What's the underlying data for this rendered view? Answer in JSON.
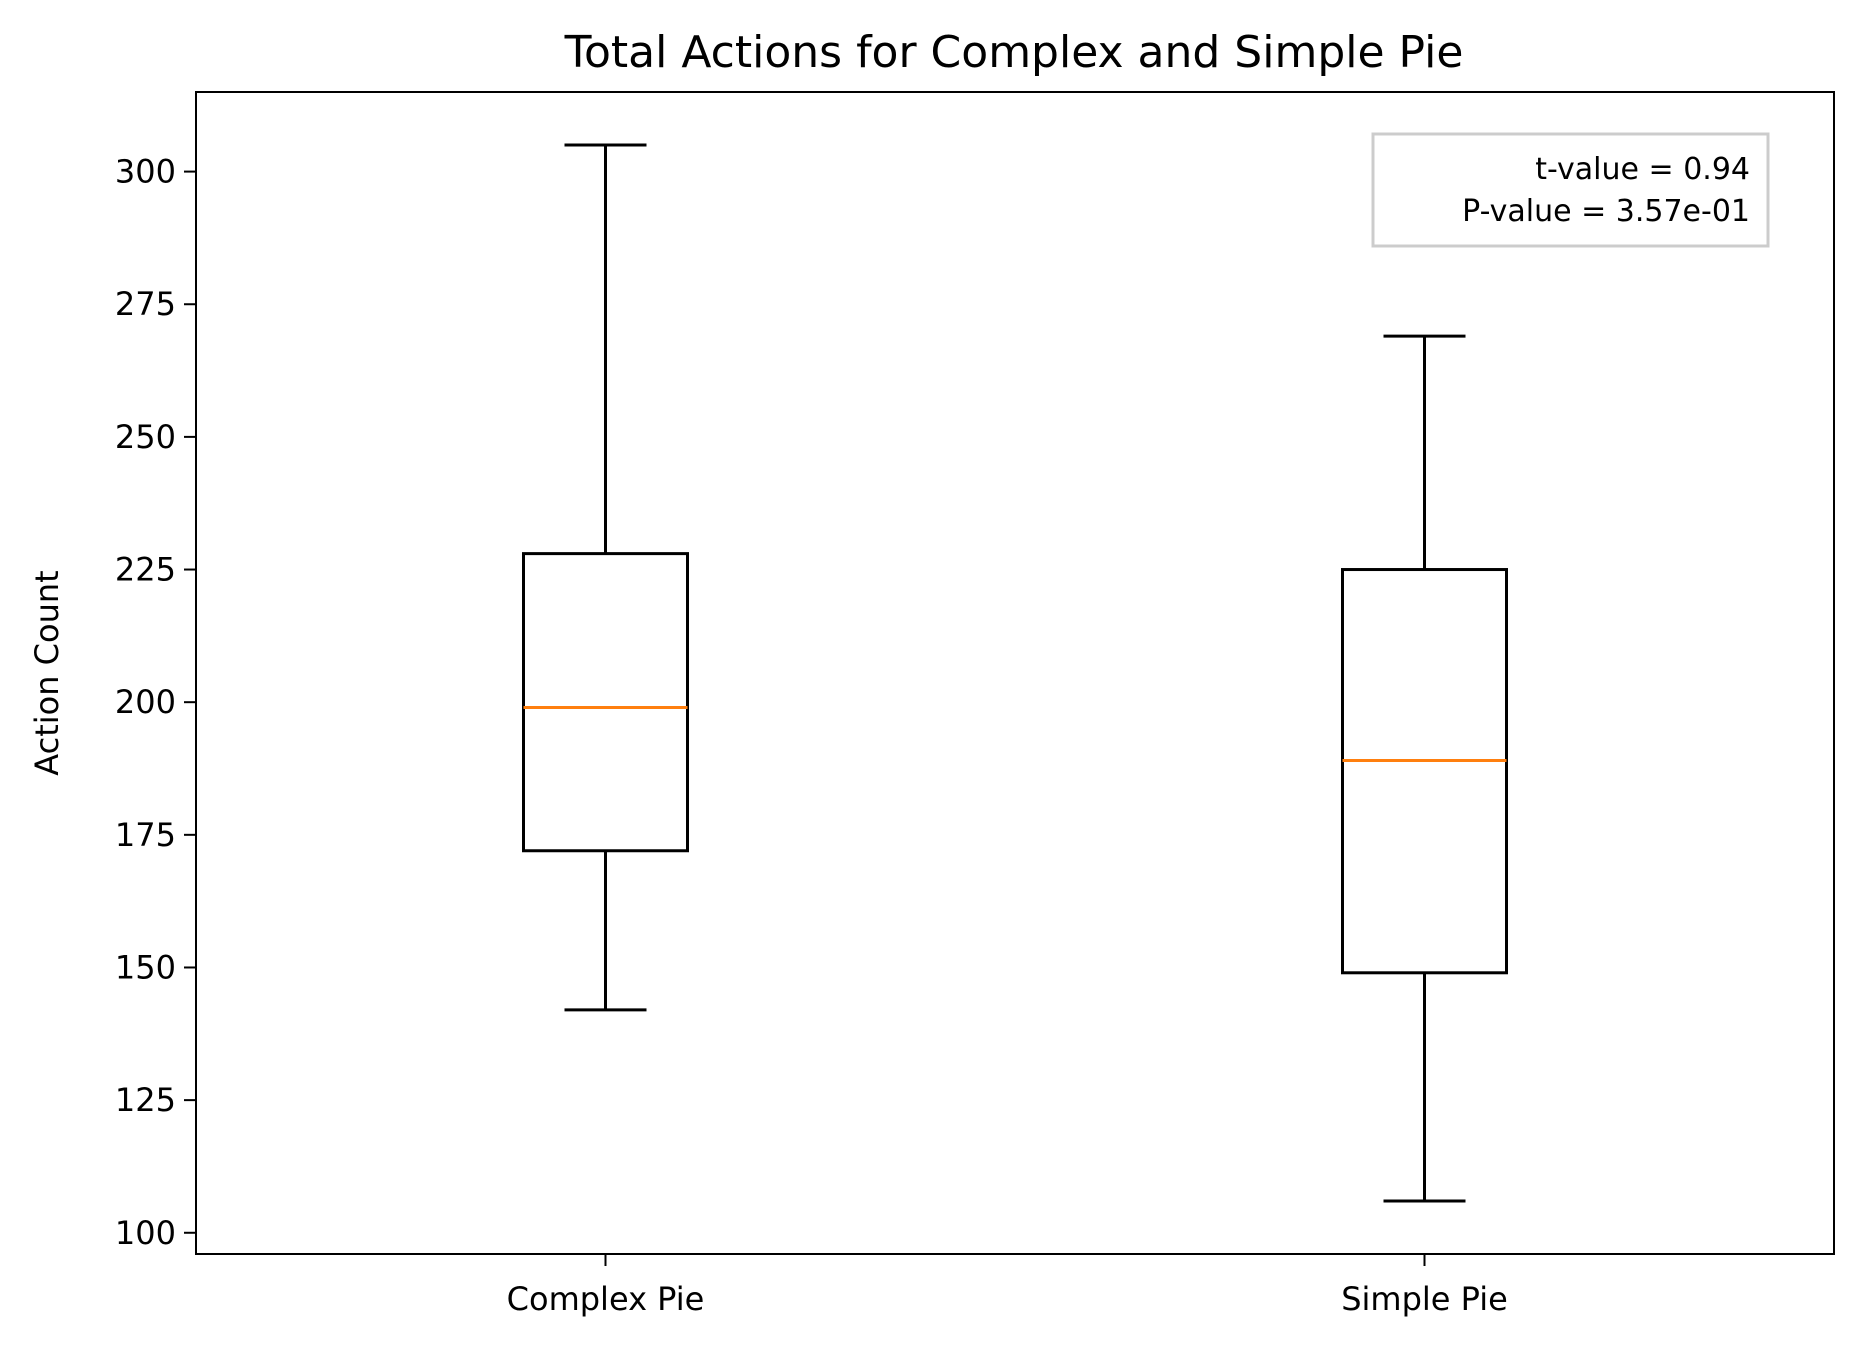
{
  "chart_data": {
    "type": "box",
    "title": "Total Actions for Complex and Simple Pie",
    "xlabel": "",
    "ylabel": "Action Count",
    "ylim": [
      96,
      315
    ],
    "yticks": [
      100,
      125,
      150,
      175,
      200,
      225,
      250,
      275,
      300
    ],
    "categories": [
      "Complex Pie",
      "Simple Pie"
    ],
    "boxes": [
      {
        "category": "Complex Pie",
        "whisker_low": 142,
        "q1": 172,
        "median": 199,
        "q3": 228,
        "whisker_high": 305
      },
      {
        "category": "Simple Pie",
        "whisker_low": 106,
        "q1": 149,
        "median": 189,
        "q3": 225,
        "whisker_high": 269
      }
    ],
    "grid": false,
    "annotation": {
      "lines": [
        "t-value = 0.94",
        "P-value = 3.57e-01"
      ],
      "placement": "top-right"
    },
    "colors": {
      "box": "#000000",
      "median": "#ff7f0e",
      "annotation_border": "#cccccc"
    }
  }
}
